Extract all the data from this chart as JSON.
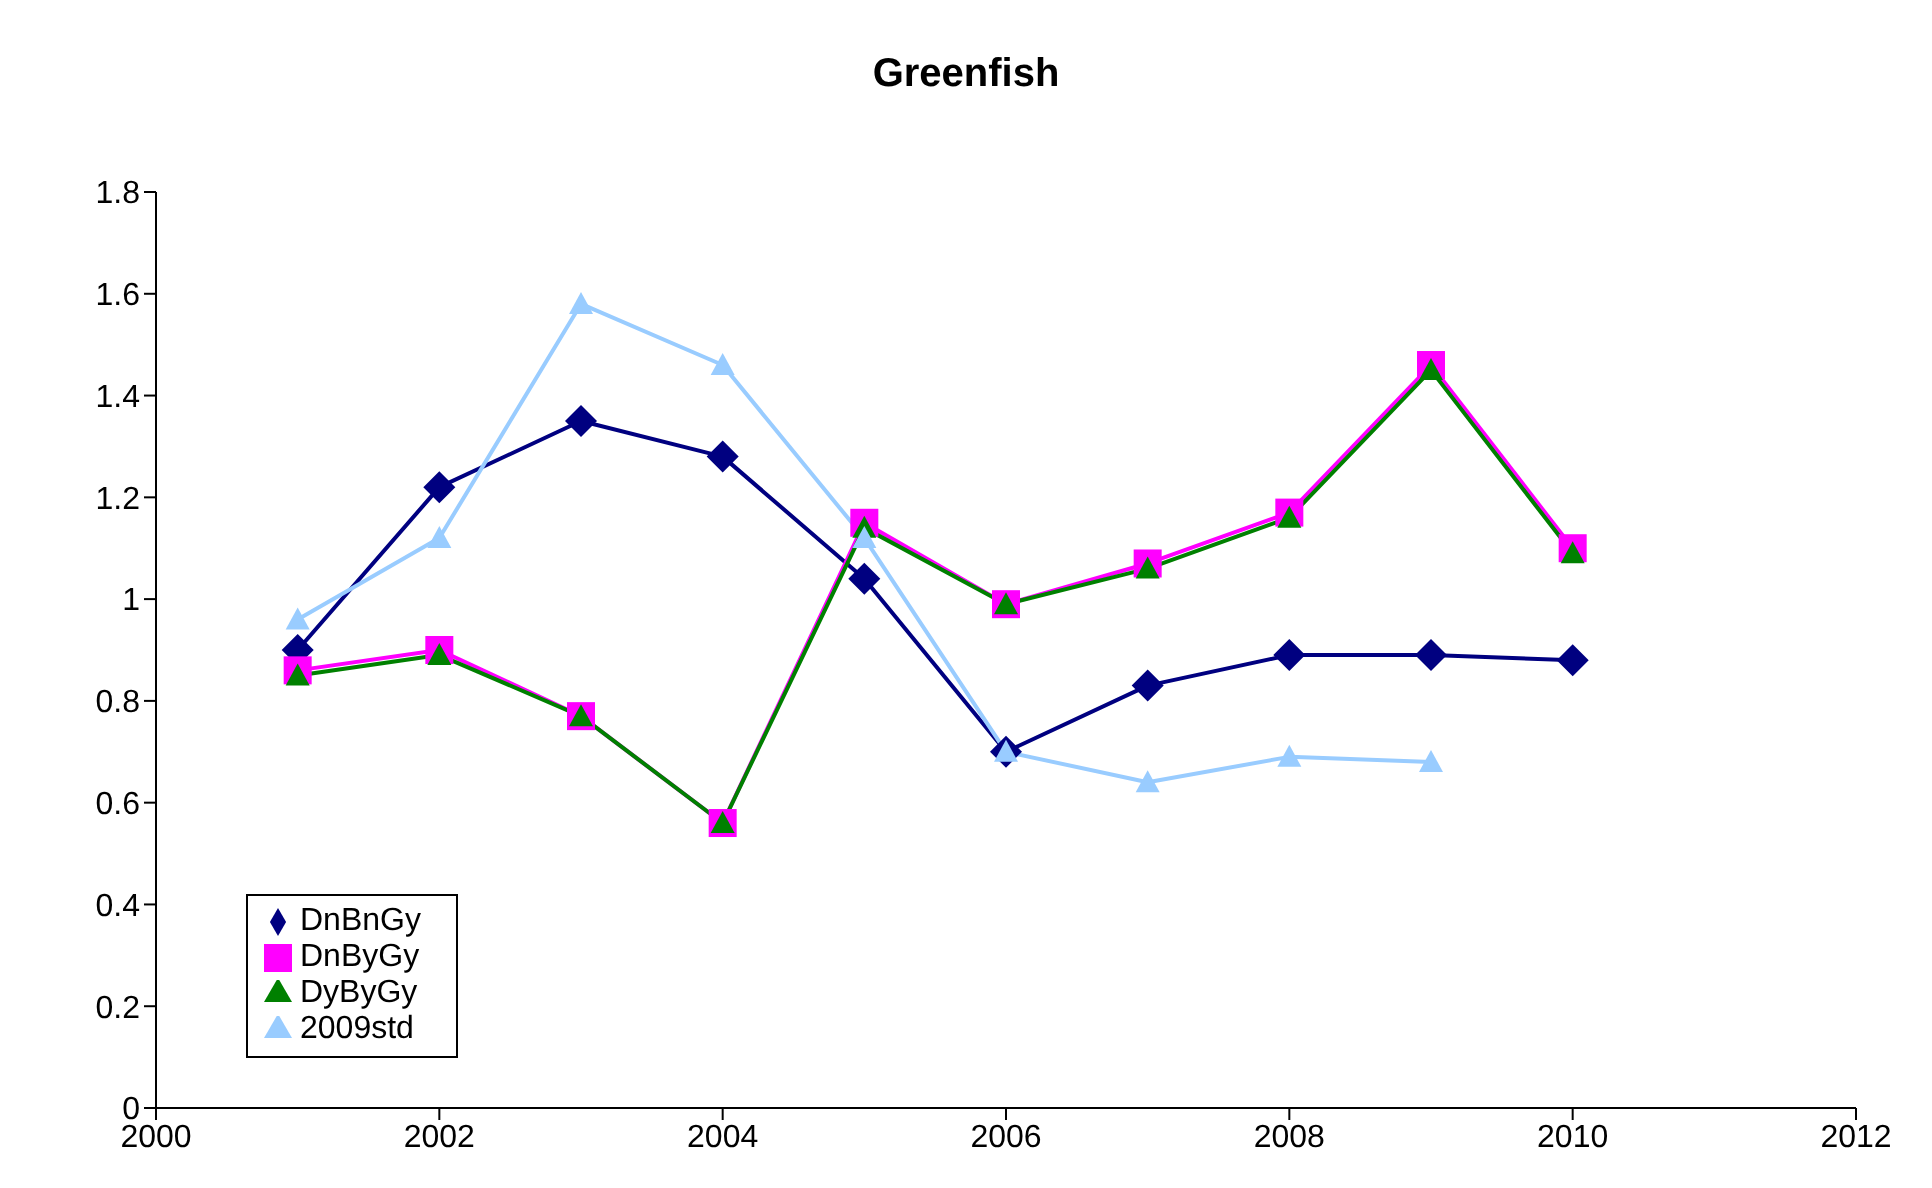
{
  "chart_data": {
    "type": "line",
    "title": "Greenfish",
    "x": [
      2001,
      2002,
      2003,
      2004,
      2005,
      2006,
      2007,
      2008,
      2009,
      2010
    ],
    "series": [
      {
        "name": "DnBnGy",
        "color": "#000080",
        "marker": "diamond",
        "values": [
          0.9,
          1.22,
          1.35,
          1.28,
          1.04,
          0.7,
          0.83,
          0.89,
          0.89,
          0.88
        ]
      },
      {
        "name": "DnByGy",
        "color": "#ff00ff",
        "marker": "square",
        "values": [
          0.86,
          0.9,
          0.77,
          0.56,
          1.15,
          0.99,
          1.07,
          1.17,
          1.46,
          1.1
        ]
      },
      {
        "name": "DyByGy",
        "color": "#008000",
        "marker": "triangle",
        "values": [
          0.85,
          0.89,
          0.77,
          0.56,
          1.14,
          0.99,
          1.06,
          1.16,
          1.45,
          1.09
        ]
      },
      {
        "name": "2009std",
        "color": "#99ccff",
        "marker": "triangle",
        "values": [
          0.96,
          1.12,
          1.58,
          1.46,
          1.12,
          0.7,
          0.64,
          0.69,
          0.68,
          null
        ]
      }
    ],
    "xlim": [
      2000,
      2012
    ],
    "xticks": [
      2000,
      2002,
      2004,
      2006,
      2008,
      2010,
      2012
    ],
    "ylim": [
      0,
      1.8
    ],
    "yticks": [
      0,
      0.2,
      0.4,
      0.6,
      0.8,
      1,
      1.2,
      1.4,
      1.6,
      1.8
    ],
    "grid": false,
    "legend": "bottom left"
  }
}
